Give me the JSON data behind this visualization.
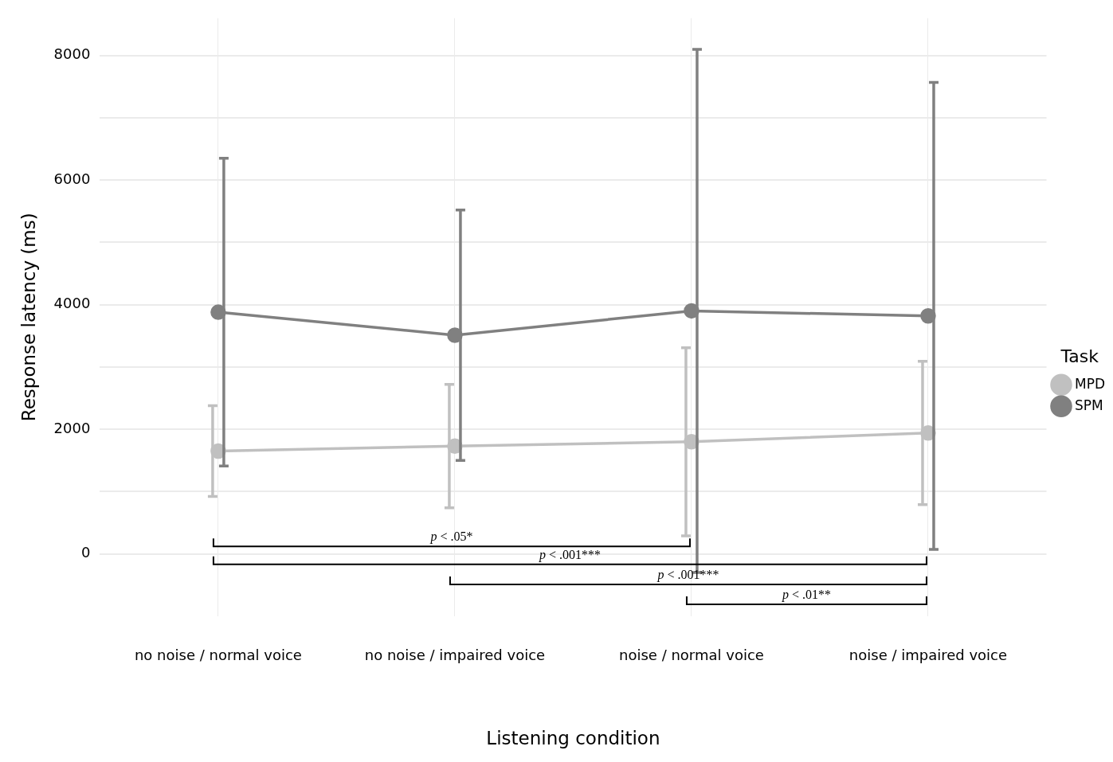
{
  "chart_data": {
    "type": "line",
    "xlabel": "Listening condition",
    "ylabel": "Response latency (ms)",
    "legend_title": "Task",
    "categories": [
      "no noise / normal voice",
      "no noise / impaired voice",
      "noise / normal voice",
      "noise / impaired voice"
    ],
    "series": [
      {
        "name": "MPD",
        "color": "#c0c0c0",
        "values": [
          1650,
          1730,
          1800,
          1940
        ],
        "errors": [
          730,
          990,
          1510,
          1150
        ]
      },
      {
        "name": "SPM",
        "color": "#808080",
        "values": [
          3880,
          3510,
          3900,
          3820
        ],
        "errors": [
          2470,
          2010,
          4200,
          3750
        ]
      }
    ],
    "ylim": [
      -1000,
      8600
    ],
    "yticks": [
      0,
      {
        "value": 1000,
        "label": null
      },
      2000,
      {
        "value": 3000,
        "label": null
      },
      4000,
      {
        "value": 5000,
        "label": null
      },
      6000,
      {
        "value": 7000,
        "label": null
      },
      8000
    ],
    "annotations": [
      "p < .05*",
      "p < .001***",
      "p < .001***",
      "p < .01**"
    ],
    "grid": true,
    "legend": "right",
    "marker": "circle",
    "line_style": "solid"
  }
}
